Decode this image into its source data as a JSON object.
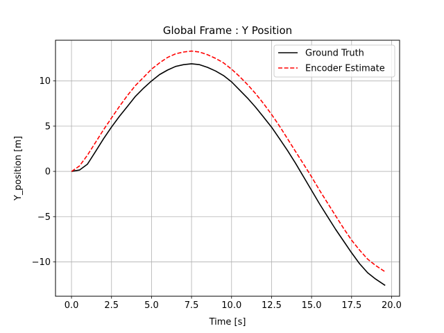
{
  "chart_data": {
    "type": "line",
    "title": "Global Frame : Y Position",
    "xlabel": "Time [s]",
    "ylabel": "Y_position [m]",
    "xlim": [
      -1.0,
      20.5
    ],
    "ylim": [
      -13.8,
      14.5
    ],
    "xticks": [
      0.0,
      2.5,
      5.0,
      7.5,
      10.0,
      12.5,
      15.0,
      17.5,
      20.0
    ],
    "xtick_labels": [
      "0.0",
      "2.5",
      "5.0",
      "7.5",
      "10.0",
      "12.5",
      "15.0",
      "17.5",
      "20.0"
    ],
    "yticks": [
      -10,
      -5,
      0,
      5,
      10
    ],
    "ytick_labels": [
      "−10",
      "−5",
      "0",
      "5",
      "10"
    ],
    "grid": true,
    "legend_position": "upper right",
    "series": [
      {
        "name": "Ground Truth",
        "color": "#000000",
        "style": "solid",
        "x": [
          0,
          0.5,
          1.0,
          1.5,
          2.0,
          2.5,
          3.0,
          3.5,
          4.0,
          4.5,
          5.0,
          5.5,
          6.0,
          6.5,
          7.0,
          7.5,
          8.0,
          8.5,
          9.0,
          9.5,
          10.0,
          10.5,
          11.0,
          11.5,
          12.0,
          12.5,
          13.0,
          13.5,
          14.0,
          14.5,
          15.0,
          15.5,
          16.0,
          16.5,
          17.0,
          17.5,
          18.0,
          18.5,
          19.0,
          19.6
        ],
        "y": [
          0,
          0.15,
          0.8,
          2.2,
          3.6,
          4.9,
          6.1,
          7.2,
          8.3,
          9.2,
          10.0,
          10.7,
          11.2,
          11.6,
          11.8,
          11.9,
          11.8,
          11.5,
          11.1,
          10.6,
          9.9,
          9.0,
          8.1,
          7.1,
          6.0,
          4.9,
          3.6,
          2.3,
          0.9,
          -0.6,
          -2.1,
          -3.6,
          -5.0,
          -6.4,
          -7.7,
          -9.0,
          -10.2,
          -11.2,
          -11.9,
          -12.6
        ]
      },
      {
        "name": "Encoder Estimate",
        "color": "#ff0000",
        "style": "dashed",
        "x": [
          0,
          0.5,
          1.0,
          1.5,
          2.0,
          2.5,
          3.0,
          3.5,
          4.0,
          4.5,
          5.0,
          5.5,
          6.0,
          6.5,
          7.0,
          7.5,
          8.0,
          8.5,
          9.0,
          9.5,
          10.0,
          10.5,
          11.0,
          11.5,
          12.0,
          12.5,
          13.0,
          13.5,
          14.0,
          14.5,
          15.0,
          15.5,
          16.0,
          16.5,
          17.0,
          17.5,
          18.0,
          18.5,
          19.0,
          19.6
        ],
        "y": [
          0,
          0.6,
          1.8,
          3.2,
          4.6,
          5.9,
          7.2,
          8.4,
          9.5,
          10.4,
          11.3,
          12.0,
          12.6,
          13.0,
          13.2,
          13.3,
          13.2,
          12.9,
          12.5,
          12.0,
          11.3,
          10.5,
          9.6,
          8.6,
          7.5,
          6.3,
          5.0,
          3.6,
          2.2,
          0.8,
          -0.6,
          -2.1,
          -3.5,
          -4.9,
          -6.3,
          -7.6,
          -8.7,
          -9.7,
          -10.4,
          -11.1
        ]
      }
    ]
  }
}
